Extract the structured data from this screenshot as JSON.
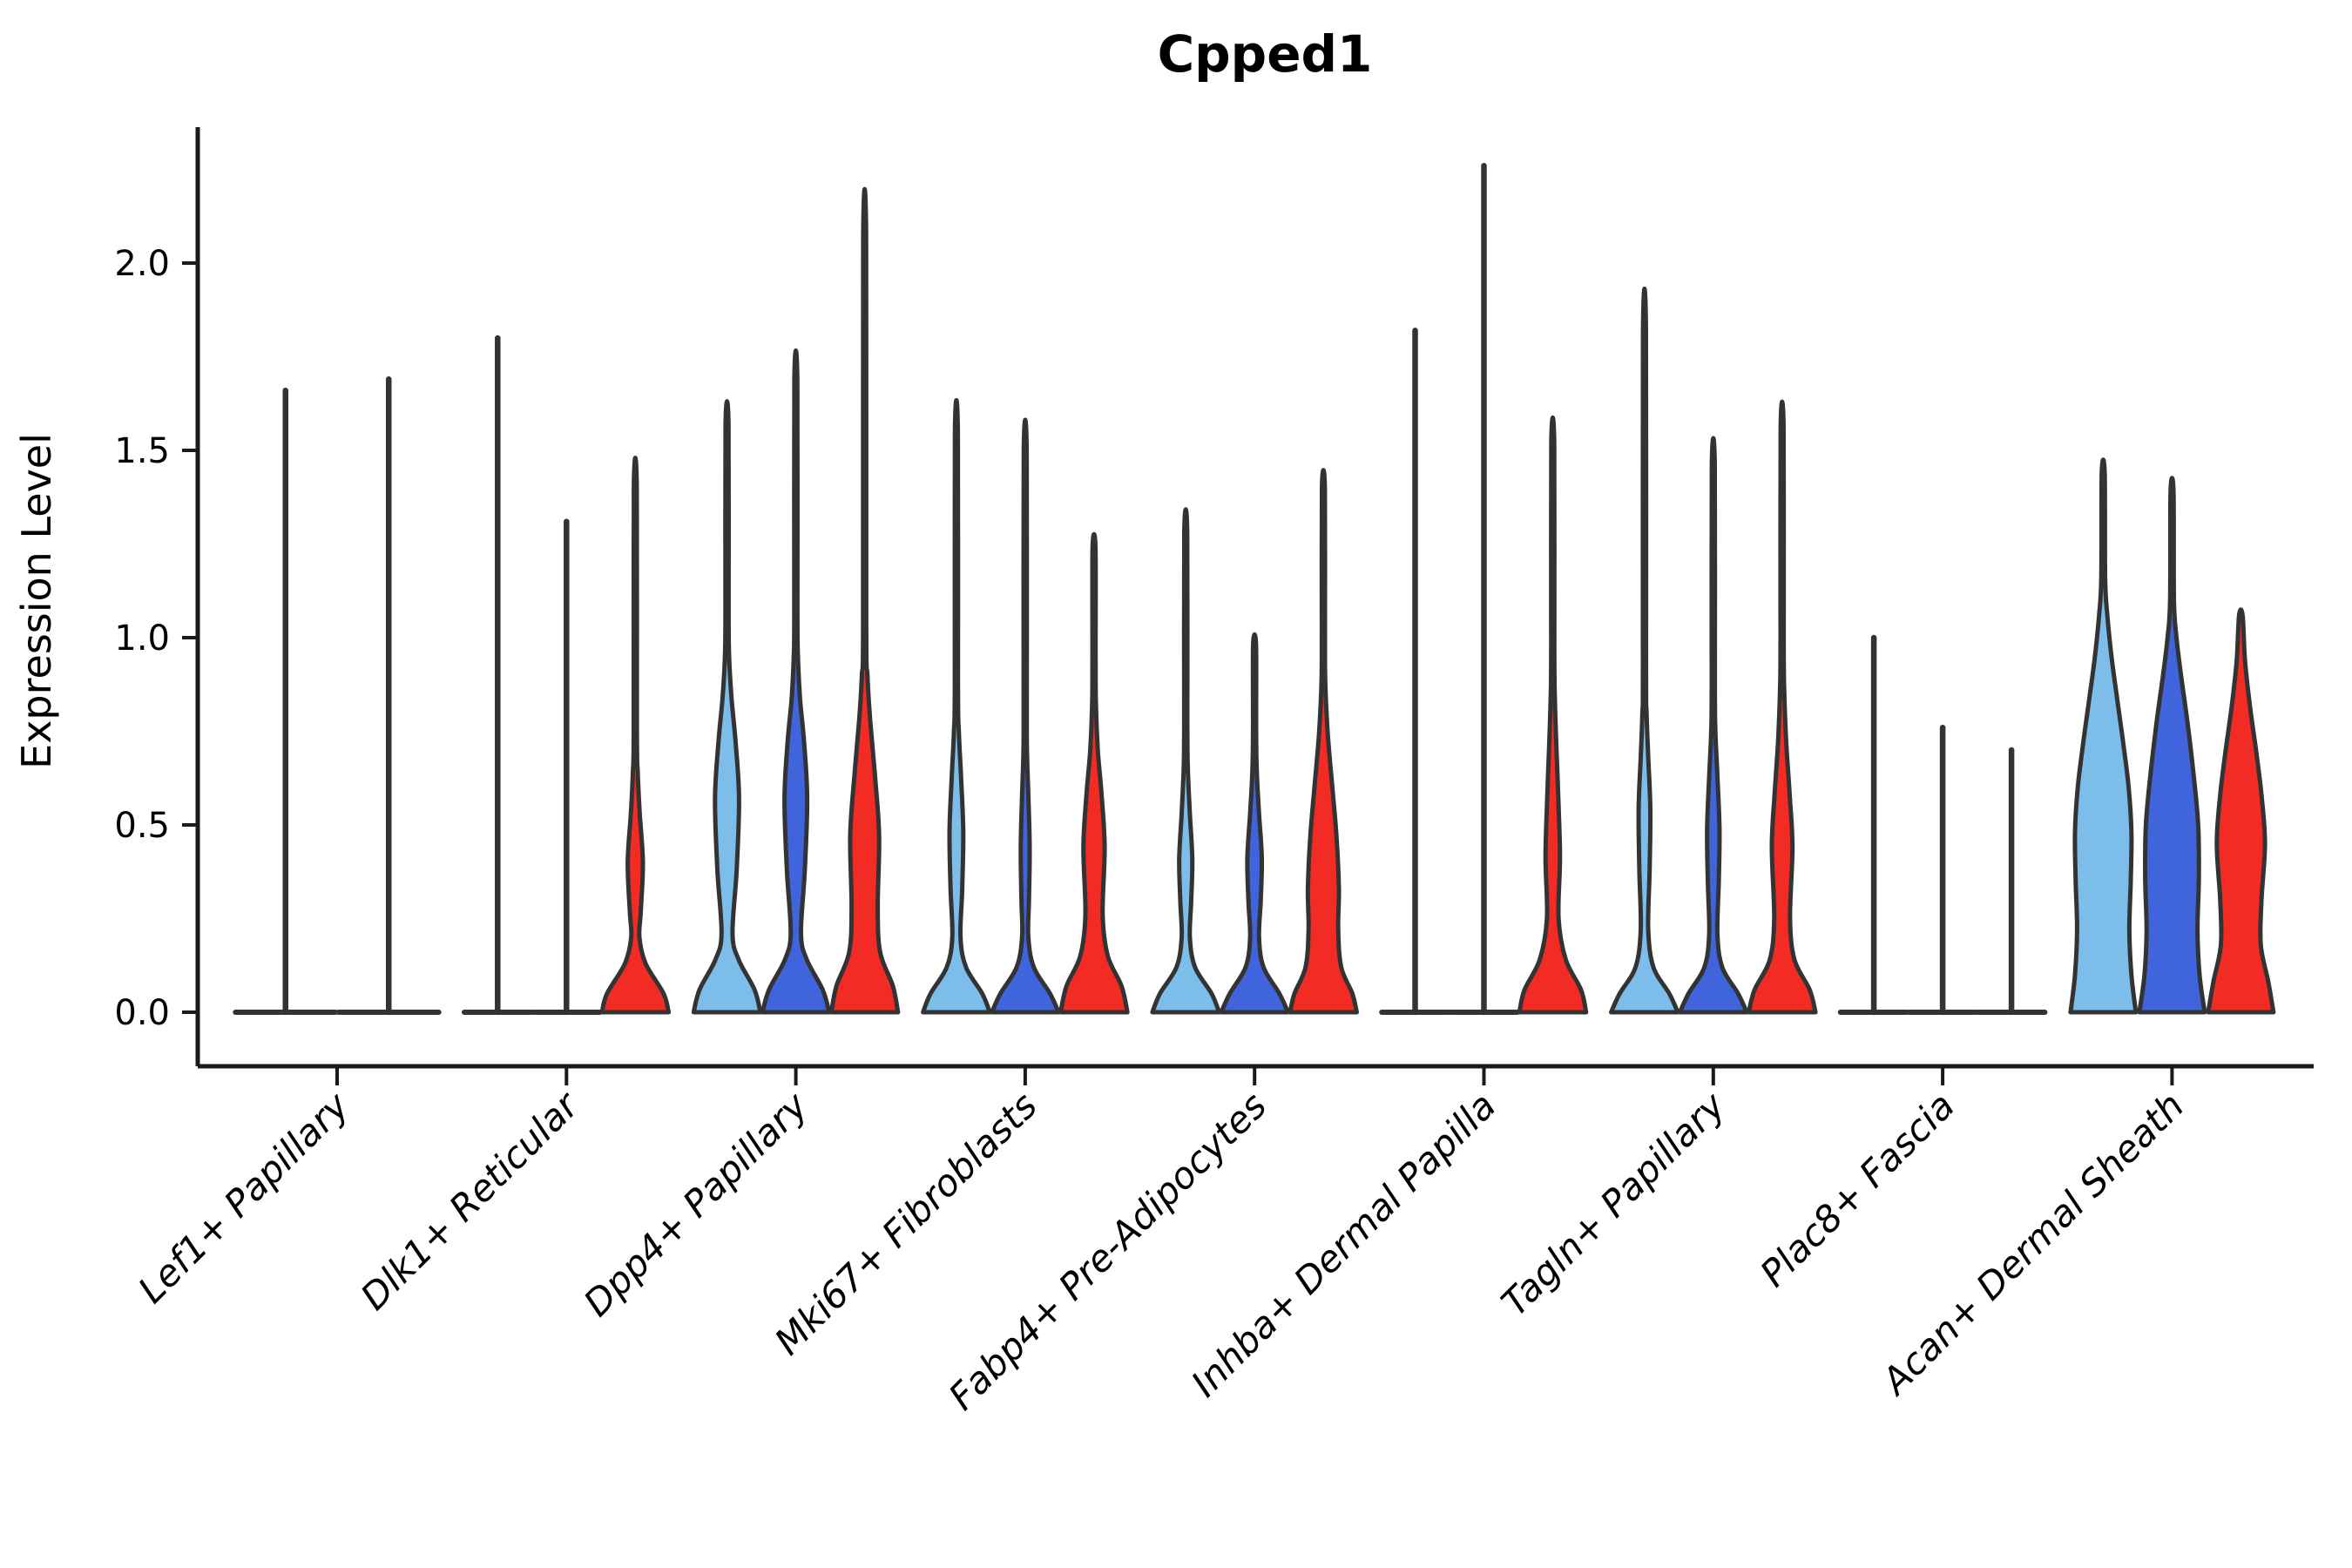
{
  "title": "Cpped1",
  "axes": {
    "ylabel": "Expression Level"
  },
  "chart_data": {
    "type": "violin",
    "title": "Cpped1",
    "ylabel": "Expression Level",
    "xlabel": "",
    "ylim": [
      -0.14,
      2.36
    ],
    "grid": false,
    "legend": "none",
    "samples_per_category": 3,
    "sample_color_order": [
      "light_blue",
      "dark_blue",
      "red"
    ],
    "palette": {
      "light_blue": "#7CBEE9",
      "dark_blue": "#3F64DC",
      "red": "#F22C24",
      "outline": "#333333",
      "axis": "#1a1a1a"
    },
    "yticks": [
      {
        "value": 0.0,
        "label": "0.0"
      },
      {
        "value": 0.5,
        "label": "0.5"
      },
      {
        "value": 1.0,
        "label": "1.0"
      },
      {
        "value": 1.5,
        "label": "1.5"
      },
      {
        "value": 2.0,
        "label": "2.0"
      }
    ],
    "categories": [
      {
        "label": "Lef1+ Papillary",
        "violins": [
          {
            "color": null,
            "collapsed": true,
            "max": 1.66
          },
          {
            "color": null,
            "collapsed": true,
            "max": 1.69
          }
        ]
      },
      {
        "label": "Dlk1+ Reticular",
        "violins": [
          {
            "color": null,
            "collapsed": true,
            "max": 1.8
          },
          {
            "color": null,
            "collapsed": true,
            "max": 1.31
          },
          {
            "color": "red",
            "collapsed": false,
            "max": 1.4,
            "profile": [
              [
                0,
                0.97
              ],
              [
                0.05,
                0.82
              ],
              [
                0.13,
                0.3
              ],
              [
                0.2,
                0.12
              ],
              [
                0.27,
                0.16
              ],
              [
                0.4,
                0.22
              ],
              [
                0.53,
                0.13
              ],
              [
                0.64,
                0.07
              ],
              [
                0.76,
                0.045
              ],
              [
                1.4,
                0.042
              ]
            ]
          }
        ]
      },
      {
        "label": "Dpp4+ Papillary",
        "violins": [
          {
            "color": "light_blue",
            "collapsed": false,
            "max": 1.57,
            "profile": [
              [
                0,
                0.97
              ],
              [
                0.06,
                0.8
              ],
              [
                0.14,
                0.34
              ],
              [
                0.21,
                0.16
              ],
              [
                0.38,
                0.28
              ],
              [
                0.57,
                0.35
              ],
              [
                0.72,
                0.25
              ],
              [
                0.84,
                0.13
              ],
              [
                0.95,
                0.06
              ],
              [
                1.08,
                0.045
              ],
              [
                1.57,
                0.042
              ]
            ]
          },
          {
            "color": "dark_blue",
            "collapsed": false,
            "max": 1.69,
            "profile": [
              [
                0,
                0.97
              ],
              [
                0.06,
                0.78
              ],
              [
                0.14,
                0.32
              ],
              [
                0.21,
                0.15
              ],
              [
                0.38,
                0.26
              ],
              [
                0.57,
                0.33
              ],
              [
                0.72,
                0.24
              ],
              [
                0.84,
                0.12
              ],
              [
                0.95,
                0.06
              ],
              [
                1.08,
                0.045
              ],
              [
                1.69,
                0.042
              ]
            ]
          },
          {
            "color": "red",
            "collapsed": false,
            "max": 2.07,
            "profile": [
              [
                0,
                0.97
              ],
              [
                0.07,
                0.82
              ],
              [
                0.16,
                0.45
              ],
              [
                0.28,
                0.38
              ],
              [
                0.47,
                0.42
              ],
              [
                0.63,
                0.3
              ],
              [
                0.78,
                0.16
              ],
              [
                0.9,
                0.08
              ],
              [
                1.05,
                0.045
              ],
              [
                2.07,
                0.042
              ]
            ]
          }
        ]
      },
      {
        "label": "Mki67+ Fibroblasts",
        "violins": [
          {
            "color": "light_blue",
            "collapsed": false,
            "max": 1.55,
            "profile": [
              [
                0,
                0.97
              ],
              [
                0.05,
                0.75
              ],
              [
                0.12,
                0.28
              ],
              [
                0.2,
                0.12
              ],
              [
                0.33,
                0.17
              ],
              [
                0.48,
                0.2
              ],
              [
                0.62,
                0.14
              ],
              [
                0.75,
                0.07
              ],
              [
                0.88,
                0.045
              ],
              [
                1.55,
                0.042
              ]
            ]
          },
          {
            "color": "dark_blue",
            "collapsed": false,
            "max": 1.5,
            "profile": [
              [
                0,
                0.97
              ],
              [
                0.05,
                0.72
              ],
              [
                0.12,
                0.25
              ],
              [
                0.2,
                0.09
              ],
              [
                0.3,
                0.11
              ],
              [
                0.44,
                0.13
              ],
              [
                0.58,
                0.09
              ],
              [
                0.7,
                0.05
              ],
              [
                0.85,
                0.045
              ],
              [
                1.5,
                0.042
              ]
            ]
          },
          {
            "color": "red",
            "collapsed": false,
            "max": 1.24,
            "profile": [
              [
                0,
                0.97
              ],
              [
                0.07,
                0.8
              ],
              [
                0.15,
                0.4
              ],
              [
                0.26,
                0.25
              ],
              [
                0.44,
                0.31
              ],
              [
                0.58,
                0.22
              ],
              [
                0.7,
                0.11
              ],
              [
                0.82,
                0.055
              ],
              [
                0.95,
                0.045
              ],
              [
                1.24,
                0.042
              ]
            ]
          }
        ]
      },
      {
        "label": "Fabp4+ Pre-Adipocytes",
        "violins": [
          {
            "color": "light_blue",
            "collapsed": false,
            "max": 1.28,
            "profile": [
              [
                0,
                0.97
              ],
              [
                0.05,
                0.75
              ],
              [
                0.12,
                0.27
              ],
              [
                0.2,
                0.12
              ],
              [
                0.3,
                0.16
              ],
              [
                0.41,
                0.19
              ],
              [
                0.53,
                0.12
              ],
              [
                0.65,
                0.06
              ],
              [
                0.78,
                0.045
              ],
              [
                1.28,
                0.042
              ]
            ]
          },
          {
            "color": "dark_blue",
            "collapsed": false,
            "max": 0.98,
            "profile": [
              [
                0,
                0.97
              ],
              [
                0.05,
                0.72
              ],
              [
                0.12,
                0.26
              ],
              [
                0.2,
                0.13
              ],
              [
                0.3,
                0.18
              ],
              [
                0.41,
                0.21
              ],
              [
                0.53,
                0.13
              ],
              [
                0.64,
                0.065
              ],
              [
                0.75,
                0.045
              ],
              [
                0.98,
                0.042
              ]
            ]
          },
          {
            "color": "red",
            "collapsed": false,
            "max": 1.4,
            "profile": [
              [
                0,
                0.97
              ],
              [
                0.05,
                0.84
              ],
              [
                0.12,
                0.52
              ],
              [
                0.22,
                0.43
              ],
              [
                0.33,
                0.45
              ],
              [
                0.47,
                0.38
              ],
              [
                0.6,
                0.26
              ],
              [
                0.74,
                0.13
              ],
              [
                0.88,
                0.055
              ],
              [
                1.02,
                0.045
              ],
              [
                1.4,
                0.042
              ]
            ]
          }
        ]
      },
      {
        "label": "Inhba+ Dermal Papilla",
        "violins": [
          {
            "color": null,
            "collapsed": true,
            "max": 1.82
          },
          {
            "color": null,
            "collapsed": true,
            "max": 2.26
          },
          {
            "color": "red",
            "collapsed": false,
            "max": 1.52,
            "profile": [
              [
                0,
                0.97
              ],
              [
                0.06,
                0.82
              ],
              [
                0.14,
                0.38
              ],
              [
                0.25,
                0.17
              ],
              [
                0.41,
                0.21
              ],
              [
                0.55,
                0.17
              ],
              [
                0.7,
                0.11
              ],
              [
                0.84,
                0.06
              ],
              [
                0.98,
                0.045
              ],
              [
                1.52,
                0.042
              ]
            ]
          }
        ]
      },
      {
        "label": "Tagln+ Papillary",
        "violins": [
          {
            "color": "light_blue",
            "collapsed": false,
            "max": 1.82,
            "profile": [
              [
                0,
                0.97
              ],
              [
                0.05,
                0.72
              ],
              [
                0.12,
                0.26
              ],
              [
                0.22,
                0.11
              ],
              [
                0.38,
                0.15
              ],
              [
                0.54,
                0.17
              ],
              [
                0.68,
                0.11
              ],
              [
                0.8,
                0.06
              ],
              [
                0.93,
                0.045
              ],
              [
                1.82,
                0.042
              ]
            ]
          },
          {
            "color": "dark_blue",
            "collapsed": false,
            "max": 1.46,
            "profile": [
              [
                0,
                0.97
              ],
              [
                0.05,
                0.72
              ],
              [
                0.12,
                0.26
              ],
              [
                0.21,
                0.12
              ],
              [
                0.35,
                0.16
              ],
              [
                0.49,
                0.18
              ],
              [
                0.63,
                0.12
              ],
              [
                0.75,
                0.06
              ],
              [
                0.88,
                0.045
              ],
              [
                1.46,
                0.042
              ]
            ]
          },
          {
            "color": "red",
            "collapsed": false,
            "max": 1.56,
            "profile": [
              [
                0,
                0.97
              ],
              [
                0.06,
                0.8
              ],
              [
                0.14,
                0.36
              ],
              [
                0.25,
                0.23
              ],
              [
                0.44,
                0.3
              ],
              [
                0.58,
                0.22
              ],
              [
                0.72,
                0.12
              ],
              [
                0.86,
                0.06
              ],
              [
                1.0,
                0.045
              ],
              [
                1.56,
                0.042
              ]
            ]
          }
        ]
      },
      {
        "label": "Plac8+ Fascia",
        "violins": [
          {
            "color": null,
            "collapsed": true,
            "max": 1.0
          },
          {
            "color": null,
            "collapsed": true,
            "max": 0.76
          },
          {
            "color": null,
            "collapsed": true,
            "max": 0.7
          }
        ]
      },
      {
        "label": "Acan+ Dermal Sheath",
        "violins": [
          {
            "color": "light_blue",
            "collapsed": false,
            "max": 1.44,
            "profile": [
              [
                0,
                0.95
              ],
              [
                0.1,
                0.82
              ],
              [
                0.22,
                0.76
              ],
              [
                0.35,
                0.8
              ],
              [
                0.48,
                0.82
              ],
              [
                0.6,
                0.74
              ],
              [
                0.72,
                0.58
              ],
              [
                0.84,
                0.4
              ],
              [
                0.95,
                0.24
              ],
              [
                1.06,
                0.12
              ],
              [
                1.16,
                0.055
              ],
              [
                1.44,
                0.042
              ]
            ]
          },
          {
            "color": "dark_blue",
            "collapsed": false,
            "max": 1.39,
            "profile": [
              [
                0,
                0.95
              ],
              [
                0.1,
                0.8
              ],
              [
                0.22,
                0.74
              ],
              [
                0.36,
                0.78
              ],
              [
                0.5,
                0.76
              ],
              [
                0.64,
                0.62
              ],
              [
                0.78,
                0.44
              ],
              [
                0.9,
                0.26
              ],
              [
                1.0,
                0.13
              ],
              [
                1.1,
                0.055
              ],
              [
                1.39,
                0.042
              ]
            ]
          },
          {
            "color": "red",
            "collapsed": false,
            "max": 1.06,
            "profile": [
              [
                0,
                0.95
              ],
              [
                0.08,
                0.8
              ],
              [
                0.18,
                0.58
              ],
              [
                0.3,
                0.6
              ],
              [
                0.45,
                0.7
              ],
              [
                0.58,
                0.6
              ],
              [
                0.7,
                0.44
              ],
              [
                0.82,
                0.26
              ],
              [
                0.94,
                0.12
              ],
              [
                1.06,
                0.05
              ]
            ]
          }
        ]
      }
    ]
  }
}
